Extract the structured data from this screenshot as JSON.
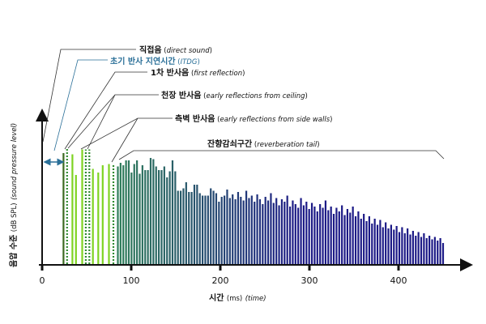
{
  "annotations": {
    "direct": {
      "ko": "직접음",
      "en": "direct sound"
    },
    "itdg": {
      "ko": "초기 반사 지연시간",
      "en": "ITDG"
    },
    "first": {
      "ko": "1차 반사음",
      "en": "first reflection"
    },
    "ceiling": {
      "ko": "천장 반사음",
      "en": "early reflections from ceiling"
    },
    "side": {
      "ko": "측벽 반사음",
      "en": "early reflections from side walls"
    },
    "tail": {
      "ko": "잔향감쇠구간",
      "en": "reverberation tail"
    }
  },
  "chart_data": {
    "type": "bar",
    "xlabel": {
      "ko": "시간",
      "unit": "(ms)",
      "en": "(time)"
    },
    "ylabel": {
      "ko": "음압 수준",
      "unit": "(dB SPL)",
      "en": "(sound pressure level)"
    },
    "x_ticks": [
      "0",
      "100",
      "200",
      "300",
      "400"
    ],
    "x_tick_values": [
      0,
      100,
      200,
      300,
      400
    ],
    "xlim": [
      0,
      480
    ],
    "ylim": [
      0,
      100
    ],
    "direct_sound": {
      "t": 0,
      "level": 100
    },
    "early_reflections": [
      {
        "t": 24,
        "level": 92,
        "kind": "first"
      },
      {
        "t": 28,
        "level": 96,
        "kind": "dotted"
      },
      {
        "t": 34,
        "level": 91,
        "kind": "light"
      },
      {
        "t": 38,
        "level": 74,
        "kind": "light"
      },
      {
        "t": 45,
        "level": 95,
        "kind": "light"
      },
      {
        "t": 49,
        "level": 95,
        "kind": "dotted"
      },
      {
        "t": 53,
        "level": 95,
        "kind": "dotted"
      },
      {
        "t": 57,
        "level": 79,
        "kind": "light"
      },
      {
        "t": 63,
        "level": 76,
        "kind": "light"
      },
      {
        "t": 68,
        "level": 82,
        "kind": "light"
      },
      {
        "t": 75,
        "level": 83,
        "kind": "light"
      },
      {
        "t": 80,
        "level": 82,
        "kind": "dotted"
      }
    ],
    "tail": {
      "t_start": 85,
      "t_end": 450,
      "levels": [
        81,
        84,
        82,
        86,
        86,
        76,
        83,
        86,
        75,
        82,
        78,
        78,
        88,
        87,
        81,
        78,
        78,
        81,
        72,
        77,
        86,
        77,
        61,
        61,
        63,
        68,
        60,
        60,
        66,
        66,
        59,
        57,
        57,
        57,
        63,
        61,
        59,
        52,
        56,
        57,
        62,
        55,
        58,
        54,
        60,
        56,
        53,
        61,
        55,
        57,
        52,
        58,
        54,
        50,
        56,
        53,
        59,
        51,
        55,
        49,
        54,
        52,
        57,
        48,
        53,
        50,
        47,
        55,
        49,
        52,
        46,
        51,
        48,
        44,
        50,
        47,
        53,
        45,
        48,
        42,
        47,
        44,
        49,
        41,
        46,
        43,
        48,
        40,
        44,
        38,
        42,
        36,
        40,
        34,
        38,
        33,
        37,
        31,
        35,
        30,
        33,
        29,
        32,
        27,
        31,
        26,
        30,
        25,
        28,
        24,
        27,
        23,
        26,
        22,
        24,
        21,
        23,
        20,
        22,
        18
      ]
    }
  },
  "colors": {
    "direct": "#e53030",
    "first": "#3d6b22",
    "light": "#7ed321",
    "dotted": "#2f8a2f",
    "itdg": "#2a6f98",
    "tail_start": "#2f7d5a",
    "tail_end": "#1c1a86"
  }
}
